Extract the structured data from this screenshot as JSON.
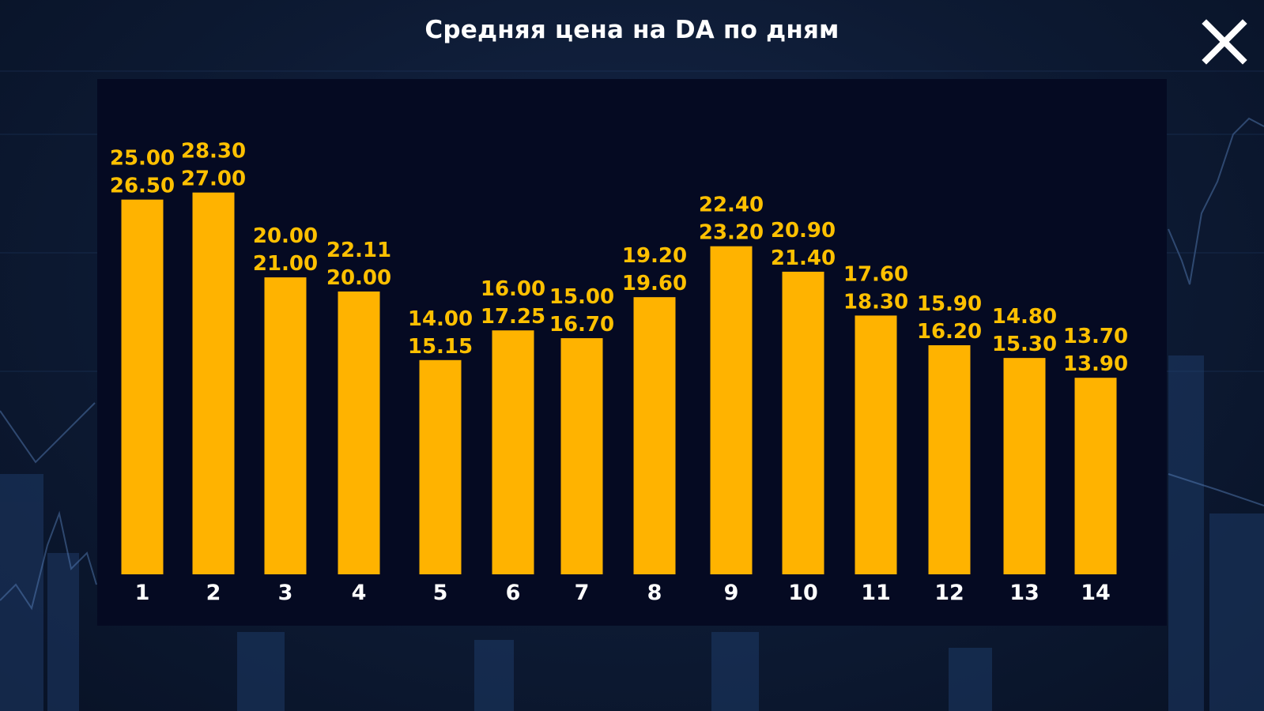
{
  "title": "Средняя цена на DA по дням",
  "close_icon": "close-icon",
  "colors": {
    "bar": "#ffb300",
    "value_label": "#ffc000",
    "category_label": "#ffffff",
    "panel": "#050a22",
    "background": "#0d1a33"
  },
  "chart_data": {
    "type": "bar",
    "title": "Средняя цена на DA по дням",
    "xlabel": "",
    "ylabel": "",
    "ylim": [
      0,
      28.3
    ],
    "grid": false,
    "categories": [
      "1",
      "2",
      "3",
      "4",
      "5",
      "6",
      "7",
      "8",
      "9",
      "10",
      "11",
      "12",
      "13",
      "14"
    ],
    "label_top": [
      "25.00",
      "28.30",
      "20.00",
      "22.11",
      "14.00",
      "16.00",
      "15.00",
      "19.20",
      "22.40",
      "20.90",
      "17.60",
      "15.90",
      "14.80",
      "13.70"
    ],
    "label_bottom": [
      "26.50",
      "27.00",
      "21.00",
      "20.00",
      "15.15",
      "17.25",
      "16.70",
      "19.60",
      "23.20",
      "21.40",
      "18.30",
      "16.20",
      "15.30",
      "13.90"
    ],
    "values": [
      26.5,
      27.0,
      21.0,
      20.0,
      15.15,
      17.25,
      16.7,
      19.6,
      23.2,
      21.4,
      18.3,
      16.2,
      15.3,
      13.9
    ]
  }
}
